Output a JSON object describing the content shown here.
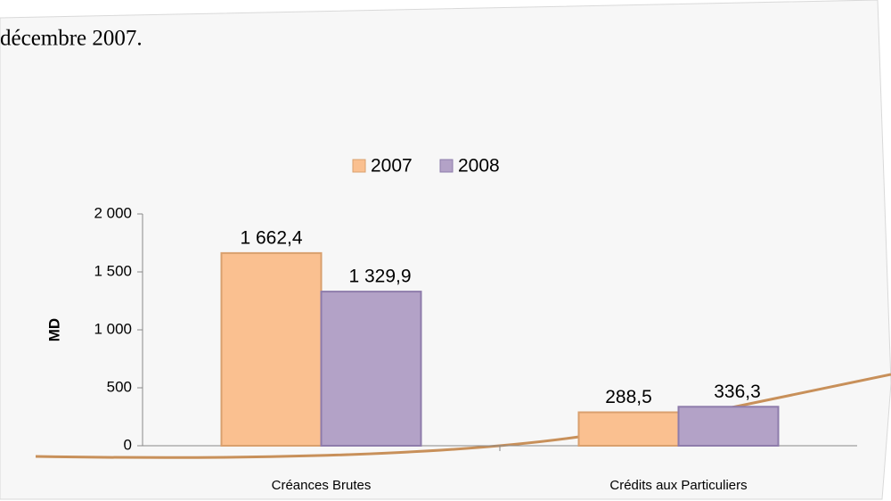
{
  "text": "décembre 2007.",
  "chart_data": {
    "type": "bar",
    "categories": [
      "Créances Brutes",
      "Crédits aux Particuliers"
    ],
    "series": [
      {
        "name": "2007",
        "color": "#fac090",
        "values": [
          1662.4,
          288.5
        ],
        "value_labels": [
          "1 662,4",
          "288,5"
        ]
      },
      {
        "name": "2008",
        "color": "#b3a2c7",
        "values": [
          1329.9,
          336.3
        ],
        "value_labels": [
          "1 329,9",
          "336,3"
        ]
      }
    ],
    "ylabel": "MD",
    "ylim": [
      0,
      2000
    ],
    "yticks": [
      0,
      500,
      {
        "value": 1000,
        "label": "1 000"
      },
      {
        "value": 1500,
        "label": "1 500"
      },
      {
        "value": 2000,
        "label": "2 000"
      }
    ],
    "legend": "top"
  }
}
